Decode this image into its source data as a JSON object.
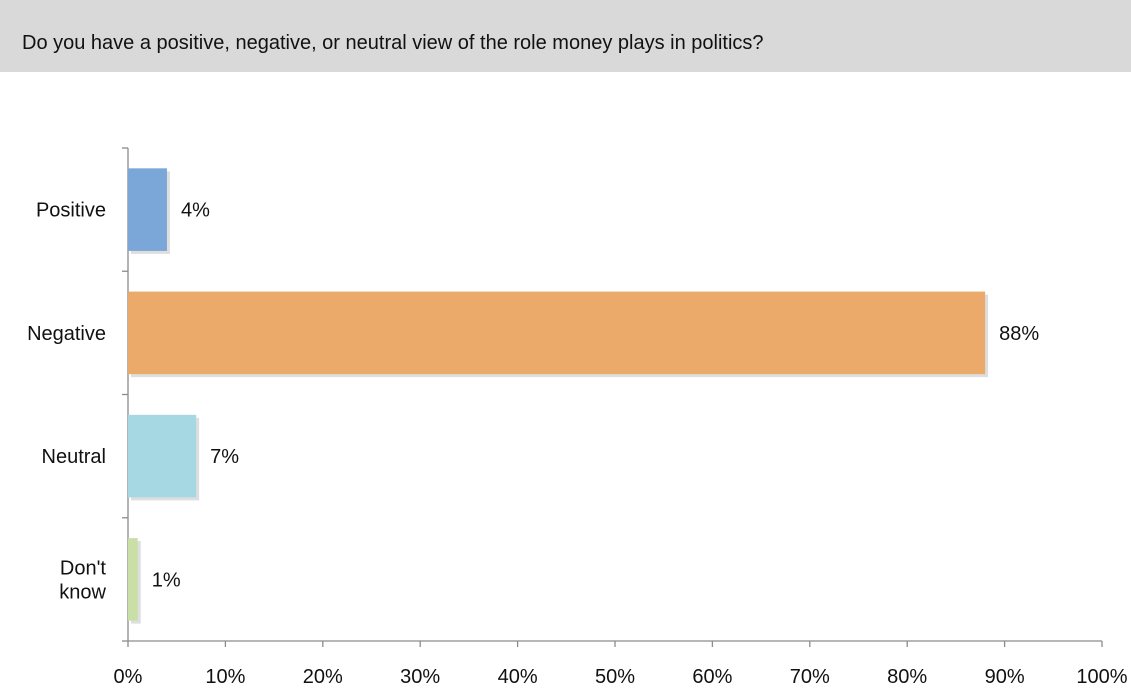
{
  "question": {
    "text": "Do you have a positive, negative, or neutral view of the role money plays in politics?"
  },
  "chart_data": {
    "type": "bar",
    "orientation": "horizontal",
    "categories": [
      [
        "Positive"
      ],
      [
        "Negative"
      ],
      [
        "Neutral"
      ],
      [
        "Don't",
        "know"
      ]
    ],
    "values": [
      4,
      88,
      7,
      1
    ],
    "value_labels": [
      "4%",
      "88%",
      "7%",
      "1%"
    ],
    "bar_colors": [
      "#7aa7d8",
      "#ebaa6a",
      "#a6d8e3",
      "#c9dfa6"
    ],
    "xlim": [
      0,
      100
    ],
    "x_ticks": [
      0,
      10,
      20,
      30,
      40,
      50,
      60,
      70,
      80,
      90,
      100
    ],
    "x_tick_labels": [
      "0%",
      "10%",
      "20%",
      "30%",
      "40%",
      "50%",
      "60%",
      "70%",
      "80%",
      "90%",
      "100%"
    ],
    "grid": false,
    "legend": "none"
  }
}
